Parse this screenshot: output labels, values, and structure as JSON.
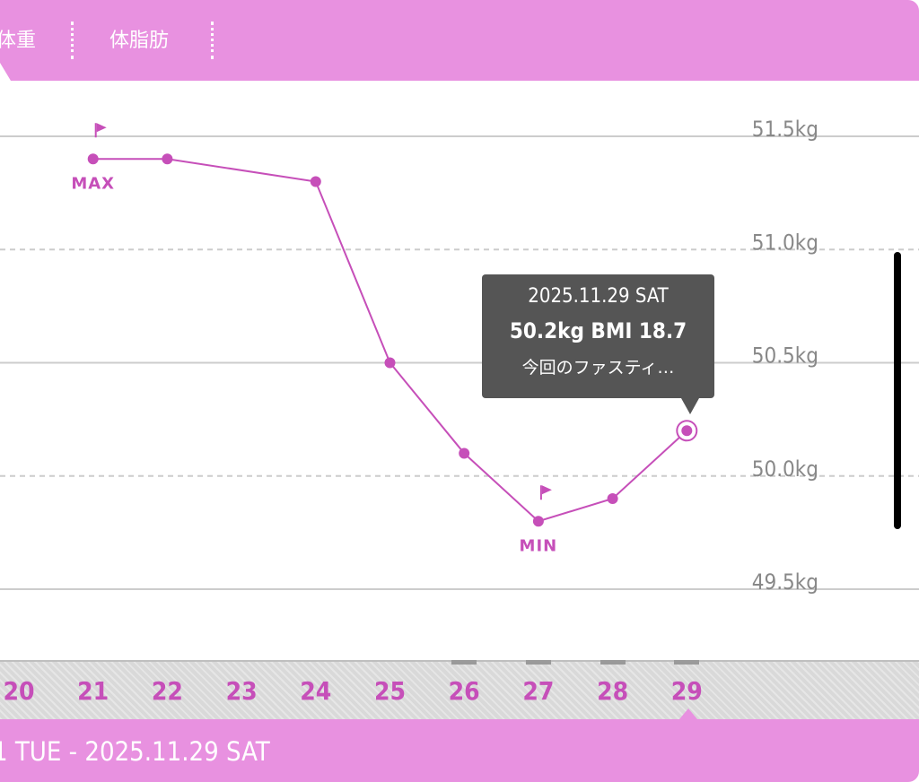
{
  "tabs": [
    {
      "label": "体重"
    },
    {
      "label": "体脂肪"
    }
  ],
  "tooltip": {
    "date": "2025.11.29 SAT",
    "main": "50.2kg  BMI 18.7",
    "note": "今回のファスティ…"
  },
  "footer": {
    "range": "1 TUE - 2025.11.29 SAT"
  },
  "colors": {
    "accent": "#e891e0",
    "series": "#c64fb9",
    "tooltip_bg": "#555555",
    "grid": "#cccccc",
    "tick_text": "#888888"
  },
  "chart_data": {
    "type": "line",
    "x": [
      "20",
      "21",
      "22",
      "23",
      "24",
      "25",
      "26",
      "27",
      "28",
      "29"
    ],
    "series": [
      {
        "values": [
          null,
          51.4,
          51.4,
          null,
          51.3,
          50.5,
          50.1,
          49.8,
          49.9,
          50.2
        ]
      }
    ],
    "y_ticks": [
      "51.5kg",
      "51.0kg",
      "50.5kg",
      "50.0kg",
      "49.5kg"
    ],
    "ylim": [
      49.5,
      51.5
    ],
    "annotations": [
      {
        "x": "21",
        "label": "MAX"
      },
      {
        "x": "27",
        "label": "MIN"
      }
    ],
    "selected": "29",
    "grid": true
  }
}
